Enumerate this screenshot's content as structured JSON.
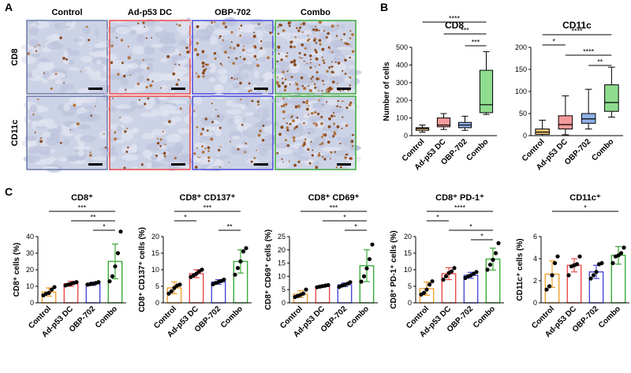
{
  "panels": {
    "a": "A",
    "b": "B",
    "c": "C"
  },
  "colors": {
    "control": "#f0a030",
    "ad": "#e84a4a",
    "obp": "#4a4ad8",
    "combo": "#3aaa3a",
    "control_fill": "#f6c97a",
    "ad_fill": "#f59a9a",
    "obp_fill": "#8fb0e8",
    "combo_fill": "#8fdc8f"
  },
  "histology": {
    "col_labels": [
      "Control",
      "Ad-p53 DC",
      "OBP-702",
      "Combo"
    ],
    "row_labels": [
      "CD8",
      "CD11c"
    ],
    "border_colors": [
      "#6a7aa8",
      "#e84a4a",
      "#4a4ad8",
      "#3aaa3a"
    ],
    "stain_density": [
      [
        0.03,
        0.07,
        0.13,
        0.3
      ],
      [
        0.03,
        0.05,
        0.09,
        0.22
      ]
    ]
  },
  "chart_data": [
    {
      "type": "boxplot",
      "panel": "B",
      "title": "CD8",
      "ylabel": "Number of cells",
      "categories": [
        "Control",
        "Ad-p53 DC",
        "OBP-702",
        "Combo"
      ],
      "ylim": [
        0,
        500
      ],
      "yticks": [
        0,
        100,
        200,
        300,
        400,
        500
      ],
      "boxes": [
        {
          "min": 20,
          "q1": 30,
          "median": 40,
          "q3": 45,
          "max": 60
        },
        {
          "min": 35,
          "q1": 50,
          "median": 60,
          "q3": 100,
          "max": 125
        },
        {
          "min": 30,
          "q1": 45,
          "median": 60,
          "q3": 75,
          "max": 110
        },
        {
          "min": 120,
          "q1": 130,
          "median": 175,
          "q3": 370,
          "max": 475
        }
      ],
      "significance": [
        {
          "from": 0,
          "to": 3,
          "label": "****"
        },
        {
          "from": 1,
          "to": 3,
          "label": "***"
        },
        {
          "from": 2,
          "to": 3,
          "label": "***"
        }
      ]
    },
    {
      "type": "boxplot",
      "panel": "B",
      "title": "CD11c",
      "ylabel": "",
      "categories": [
        "Control",
        "Ad-p53 DC",
        "OBP-702",
        "Combo"
      ],
      "ylim": [
        0,
        200
      ],
      "yticks": [
        0,
        50,
        100,
        150,
        200
      ],
      "boxes": [
        {
          "min": 0,
          "q1": 3,
          "median": 8,
          "q3": 15,
          "max": 35
        },
        {
          "min": 2,
          "q1": 15,
          "median": 25,
          "q3": 45,
          "max": 90
        },
        {
          "min": 15,
          "q1": 28,
          "median": 38,
          "q3": 50,
          "max": 105
        },
        {
          "min": 42,
          "q1": 55,
          "median": 75,
          "q3": 115,
          "max": 155
        }
      ],
      "significance": [
        {
          "from": 0,
          "to": 3,
          "label": "****"
        },
        {
          "from": 0,
          "to": 1,
          "label": "*"
        },
        {
          "from": 1,
          "to": 3,
          "label": "****"
        },
        {
          "from": 2,
          "to": 3,
          "label": "**"
        }
      ]
    },
    {
      "type": "bar",
      "panel": "C",
      "title": "CD8⁺",
      "ylabel": "CD8⁺ cells (%)",
      "categories": [
        "Control",
        "Ad-p53 DC",
        "OBP-702",
        "Combo"
      ],
      "ylim": [
        0,
        40
      ],
      "yticks": [
        0,
        10,
        20,
        30,
        40
      ],
      "values": [
        6.5,
        11.5,
        11.5,
        25
      ],
      "errors": [
        2.5,
        1.5,
        1.0,
        10.5
      ],
      "points": [
        [
          4.5,
          5.5,
          6,
          8,
          9.5
        ],
        [
          10.5,
          11,
          11.5,
          12,
          12.5
        ],
        [
          11,
          11.3,
          11.5,
          12,
          12.5
        ],
        [
          13,
          16,
          22,
          30,
          43
        ]
      ],
      "significance": [
        {
          "from": 0,
          "to": 3,
          "label": "***"
        },
        {
          "from": 1,
          "to": 3,
          "label": "**"
        },
        {
          "from": 2,
          "to": 3,
          "label": "*"
        }
      ]
    },
    {
      "type": "bar",
      "panel": "C",
      "title": "CD8⁺ CD137⁺",
      "ylabel": "CD8⁺ CD137⁺ cells (%)",
      "categories": [
        "Control",
        "Ad-p53 DC",
        "OBP-702",
        "Combo"
      ],
      "ylim": [
        0,
        20
      ],
      "yticks": [
        0,
        5,
        10,
        15,
        20
      ],
      "values": [
        4.5,
        8.8,
        6.3,
        12.5
      ],
      "errors": [
        1.8,
        1.2,
        0.7,
        3.5
      ],
      "points": [
        [
          2.8,
          3.5,
          4.5,
          5.2,
          5.5
        ],
        [
          7.8,
          8.3,
          8.8,
          9.5,
          10
        ],
        [
          5.6,
          6,
          6.3,
          6.6,
          7
        ],
        [
          8.5,
          10.5,
          12.5,
          15.5,
          16.5
        ]
      ],
      "significance": [
        {
          "from": 0,
          "to": 3,
          "label": "***"
        },
        {
          "from": 0,
          "to": 1,
          "label": "*"
        },
        {
          "from": 2,
          "to": 3,
          "label": "**"
        }
      ]
    },
    {
      "type": "bar",
      "panel": "C",
      "title": "CD8⁺ CD69⁺",
      "ylabel": "CD8⁺ CD69⁺ cells (%)",
      "categories": [
        "Control",
        "Ad-p53 DC",
        "OBP-702",
        "Combo"
      ],
      "ylim": [
        0,
        25
      ],
      "yticks": [
        0,
        5,
        10,
        15,
        20,
        25
      ],
      "values": [
        3.3,
        6.3,
        6.8,
        14
      ],
      "errors": [
        1.3,
        0.4,
        0.7,
        6.0
      ],
      "points": [
        [
          2.2,
          2.6,
          3,
          3.5,
          5
        ],
        [
          5.9,
          6.1,
          6.3,
          6.5,
          6.7
        ],
        [
          6,
          6.5,
          6.8,
          7.2,
          7.8
        ],
        [
          8,
          10,
          13,
          16.5,
          22
        ]
      ],
      "significance": [
        {
          "from": 0,
          "to": 3,
          "label": "***"
        },
        {
          "from": 1,
          "to": 3,
          "label": "*"
        },
        {
          "from": 2,
          "to": 3,
          "label": "*"
        }
      ]
    },
    {
      "type": "bar",
      "panel": "C",
      "title": "CD8⁺ PD-1⁺",
      "ylabel": "CD8⁺ PD-1⁺ cells (%)",
      "categories": [
        "Control",
        "Ad-p53 DC",
        "OBP-702",
        "Combo"
      ],
      "ylim": [
        0,
        20
      ],
      "yticks": [
        0,
        5,
        10,
        15,
        20
      ],
      "values": [
        4.3,
        8.8,
        8.3,
        13.2
      ],
      "errors": [
        2.0,
        1.8,
        0.9,
        3.3
      ],
      "points": [
        [
          2.5,
          3,
          4,
          5.5,
          6.5
        ],
        [
          7,
          8,
          9,
          9.5,
          10.5
        ],
        [
          7.5,
          8,
          8.3,
          8.8,
          9.3
        ],
        [
          10,
          11.5,
          13,
          15,
          18
        ]
      ],
      "significance": [
        {
          "from": 0,
          "to": 3,
          "label": "****"
        },
        {
          "from": 0,
          "to": 1,
          "label": "*"
        },
        {
          "from": 1,
          "to": 3,
          "label": "*"
        },
        {
          "from": 2,
          "to": 3,
          "label": "*"
        }
      ]
    },
    {
      "type": "bar",
      "panel": "C",
      "title": "CD11c⁺",
      "ylabel": "CD11c⁺ cells (%)",
      "categories": [
        "Control",
        "Ad-p53 DC",
        "OBP-702",
        "Combo"
      ],
      "ylim": [
        0,
        6
      ],
      "yticks": [
        0,
        2,
        4,
        6
      ],
      "values": [
        2.6,
        3.4,
        2.8,
        4.3
      ],
      "errors": [
        1.2,
        0.6,
        0.6,
        0.8
      ],
      "points": [
        [
          1.2,
          1.5,
          2.5,
          3.6,
          4.2
        ],
        [
          2.5,
          3.3,
          3.4,
          3.5,
          4.2
        ],
        [
          2.2,
          2.5,
          2.8,
          3.5,
          3.6
        ],
        [
          3.6,
          4.2,
          4.3,
          4.5,
          5
        ]
      ],
      "significance": [
        {
          "from": 0,
          "to": 3,
          "label": "*"
        }
      ]
    }
  ]
}
